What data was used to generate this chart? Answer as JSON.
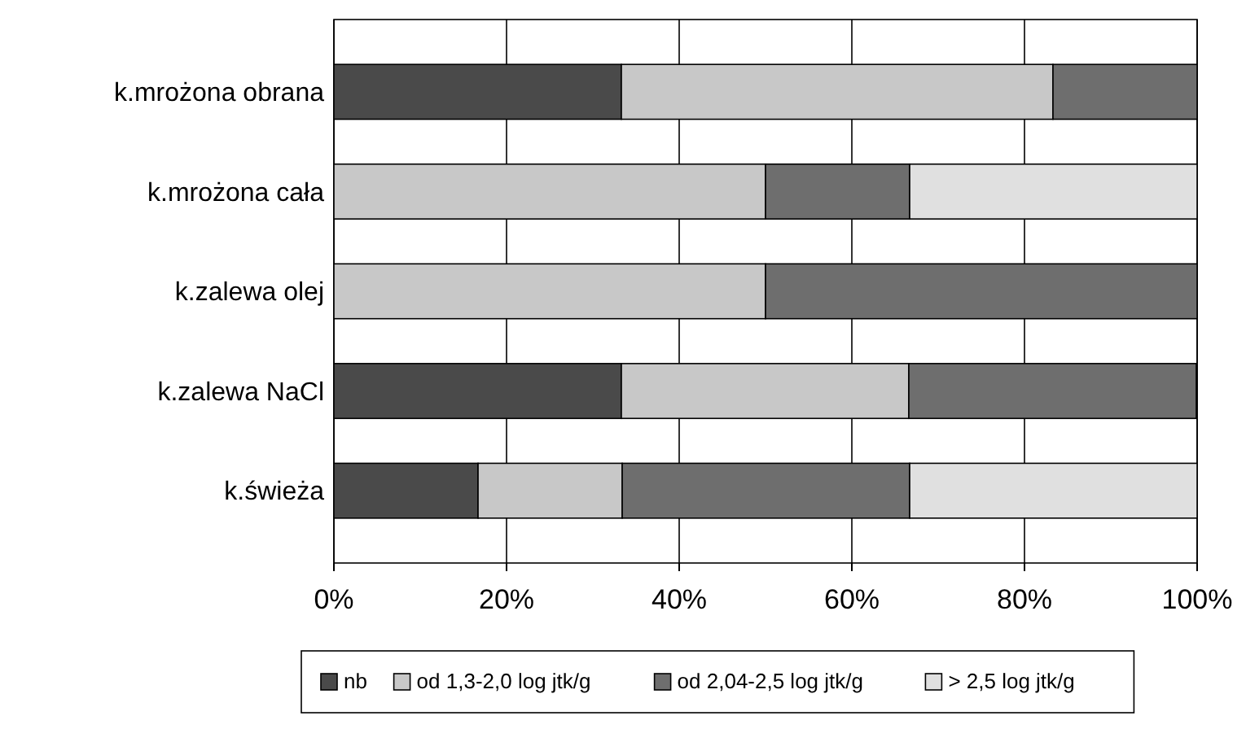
{
  "chart_data": {
    "type": "bar",
    "orientation": "horizontal",
    "stacked": true,
    "categories": [
      "k.mrożona obrana",
      "k.mrożona cała",
      "k.zalewa olej",
      "k.zalewa NaCl",
      "k.świeża"
    ],
    "series": [
      {
        "name": "nb",
        "color": "#4a4a4a",
        "values": [
          33.3,
          0,
          0,
          33.3,
          16.7
        ]
      },
      {
        "name": "od 1,3-2,0 log jtk/g",
        "color": "#c8c8c8",
        "values": [
          50,
          50,
          50,
          33.3,
          16.7
        ]
      },
      {
        "name": "od 2,04-2,5 log jtk/g",
        "color": "#6e6e6e",
        "values": [
          16.7,
          16.7,
          50,
          33.3,
          33.3
        ]
      },
      {
        "name": "> 2,5 log jtk/g",
        "color": "#e0e0e0",
        "values": [
          0,
          33.3,
          0,
          0,
          33.3
        ]
      }
    ],
    "xlim": [
      0,
      100
    ],
    "xticks": [
      {
        "value": 0,
        "label": "0%"
      },
      {
        "value": 20,
        "label": "20%"
      },
      {
        "value": 40,
        "label": "40%"
      },
      {
        "value": 60,
        "label": "60%"
      },
      {
        "value": 80,
        "label": "80%"
      },
      {
        "value": 100,
        "label": "100%"
      }
    ],
    "grid": "x",
    "legend": "bottom"
  }
}
